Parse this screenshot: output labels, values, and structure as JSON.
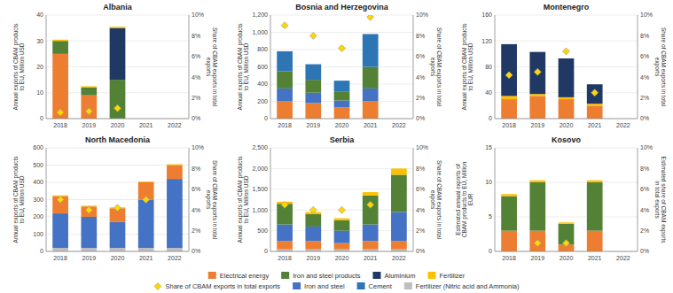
{
  "chart_data": [
    {
      "type": "bar",
      "stacked": true,
      "grid": true,
      "legend": "bottom",
      "title": "Albania",
      "categories": [
        "2018",
        "2019",
        "2020",
        "2021",
        "2022"
      ],
      "ylabel": "Annual exports of CBAM products\nto EU, Million USD",
      "y2label": "Share of CBAM exports in total\nexports",
      "ylim": [
        0,
        40
      ],
      "yticks": [
        0,
        10,
        20,
        30,
        40
      ],
      "y2lim": [
        0,
        10
      ],
      "y2ticks": [
        {
          "value": 0,
          "label": "0%"
        },
        {
          "value": 2,
          "label": "2%"
        },
        {
          "value": 4,
          "label": "4%"
        },
        {
          "value": 6,
          "label": "6%"
        },
        {
          "value": 8,
          "label": "8%"
        },
        {
          "value": 10,
          "label": "10%"
        }
      ],
      "series": [
        {
          "name": "Electrical energy",
          "color": "#ed7d31",
          "values": [
            25,
            9,
            0,
            0,
            0
          ]
        },
        {
          "name": "Iron and steel products",
          "color": "#538135",
          "values": [
            5,
            3,
            15,
            0,
            0
          ]
        },
        {
          "name": "Aluminium",
          "color": "#1f3864",
          "values": [
            0,
            0,
            20,
            0,
            0
          ]
        },
        {
          "name": "Fertilizer",
          "color": "#ffc000",
          "values": [
            0.5,
            0.5,
            0.5,
            0,
            0
          ]
        },
        {
          "name": "Share of CBAM exports in total exports",
          "type": "scatter",
          "axis": "y2",
          "marker": "diamond",
          "color": "#ffd700",
          "values": [
            0.6,
            0.7,
            1.0,
            null,
            null
          ]
        }
      ]
    },
    {
      "type": "bar",
      "stacked": true,
      "grid": true,
      "legend": "bottom",
      "title": "Bosnia and Herzegovina",
      "categories": [
        "2018",
        "2019",
        "2020",
        "2021",
        "2022"
      ],
      "ylabel": "Annual exports of CBAM products\nto EU, Million USD",
      "y2label": "Share of CBAM exports in total\nexports",
      "ylim": [
        0,
        1200
      ],
      "yticks": [
        0,
        200,
        400,
        600,
        800,
        {
          "value": 1000,
          "label": "1,000"
        },
        {
          "value": 1200,
          "label": "1,200"
        }
      ],
      "y2lim": [
        0,
        10
      ],
      "y2ticks": [
        {
          "value": 0,
          "label": "0%"
        },
        {
          "value": 2,
          "label": "2%"
        },
        {
          "value": 4,
          "label": "4%"
        },
        {
          "value": 6,
          "label": "6%"
        },
        {
          "value": 8,
          "label": "8%"
        },
        {
          "value": 10,
          "label": "10%"
        }
      ],
      "series": [
        {
          "name": "Electrical energy",
          "color": "#ed7d31",
          "values": [
            200,
            180,
            130,
            200,
            0
          ]
        },
        {
          "name": "Iron and steel",
          "color": "#4472c4",
          "values": [
            150,
            120,
            80,
            150,
            0
          ]
        },
        {
          "name": "Iron and steel products",
          "color": "#538135",
          "values": [
            200,
            150,
            100,
            250,
            0
          ]
        },
        {
          "name": "Cement",
          "color": "#2e75b6",
          "values": [
            230,
            180,
            130,
            380,
            0
          ]
        },
        {
          "name": "Share of CBAM exports in total exports",
          "type": "scatter",
          "axis": "y2",
          "marker": "diamond",
          "color": "#ffd700",
          "values": [
            9.0,
            8.0,
            6.8,
            9.8,
            null
          ]
        }
      ]
    },
    {
      "type": "bar",
      "stacked": true,
      "grid": true,
      "legend": "bottom",
      "title": "Montenegro",
      "categories": [
        "2018",
        "2019",
        "2020",
        "2021",
        "2022"
      ],
      "ylabel": "Annual exports of CBAM products\nto EU, Million USD",
      "y2label": "Share of CBAM exports in total\nexports",
      "ylim": [
        0,
        160
      ],
      "yticks": [
        0,
        40,
        80,
        120,
        160
      ],
      "y2lim": [
        0,
        10
      ],
      "y2ticks": [
        {
          "value": 0,
          "label": "0%"
        },
        {
          "value": 2,
          "label": "2%"
        },
        {
          "value": 4,
          "label": "4%"
        },
        {
          "value": 6,
          "label": "6%"
        },
        {
          "value": 8,
          "label": "8%"
        },
        {
          "value": 10,
          "label": "10%"
        }
      ],
      "series": [
        {
          "name": "Electrical energy",
          "color": "#ed7d31",
          "values": [
            30,
            35,
            30,
            20,
            0
          ]
        },
        {
          "name": "Fertilizer",
          "color": "#ffc000",
          "values": [
            5,
            3,
            3,
            3,
            0
          ]
        },
        {
          "name": "Aluminium",
          "color": "#1f3864",
          "values": [
            80,
            65,
            60,
            30,
            0
          ]
        },
        {
          "name": "Share of CBAM exports in total exports",
          "type": "scatter",
          "axis": "y2",
          "marker": "diamond",
          "color": "#ffd700",
          "values": [
            4.2,
            4.5,
            6.5,
            2.5,
            null
          ]
        }
      ]
    },
    {
      "type": "bar",
      "stacked": true,
      "grid": true,
      "legend": "bottom",
      "title": "North Macedonia",
      "categories": [
        "2018",
        "2019",
        "2020",
        "2021",
        "2022"
      ],
      "ylabel": "Annual exports of CBAM products\nto EU, Million USD",
      "y2label": "Share of CBAM exports in total\nexports",
      "ylim": [
        0,
        600
      ],
      "yticks": [
        0,
        100,
        200,
        300,
        400,
        500,
        600
      ],
      "y2lim": [
        0,
        10
      ],
      "y2ticks": [
        {
          "value": 0,
          "label": "0%"
        },
        {
          "value": 2,
          "label": "2%"
        },
        {
          "value": 4,
          "label": "4%"
        },
        {
          "value": 6,
          "label": "6%"
        },
        {
          "value": 8,
          "label": "8%"
        },
        {
          "value": 10,
          "label": "10%"
        }
      ],
      "series": [
        {
          "name": "Fertilizer (Nitric acid and Ammonia)",
          "color": "#bfbfbf",
          "values": [
            20,
            20,
            20,
            20,
            20
          ]
        },
        {
          "name": "Iron and steel",
          "color": "#4472c4",
          "values": [
            200,
            180,
            150,
            280,
            400
          ]
        },
        {
          "name": "Electrical energy",
          "color": "#ed7d31",
          "values": [
            100,
            60,
            80,
            100,
            80
          ]
        },
        {
          "name": "Fertilizer",
          "color": "#ffc000",
          "values": [
            5,
            5,
            5,
            5,
            5
          ]
        },
        {
          "name": "Share of CBAM exports in total exports",
          "type": "scatter",
          "axis": "y2",
          "marker": "diamond",
          "color": "#ffd700",
          "values": [
            5.0,
            4.0,
            4.2,
            5.0,
            null
          ]
        }
      ]
    },
    {
      "type": "bar",
      "stacked": true,
      "grid": true,
      "legend": "bottom",
      "title": "Serbia",
      "categories": [
        "2018",
        "2019",
        "2020",
        "2021",
        "2022"
      ],
      "ylabel": "Annual exports of CBAM products\nto EU, Million USD",
      "y2label": "Share of CBAM exports in total\nexports",
      "ylim": [
        0,
        2500
      ],
      "yticks": [
        0,
        500,
        {
          "value": 1000,
          "label": "1,000"
        },
        {
          "value": 1500,
          "label": "1,500"
        },
        {
          "value": 2000,
          "label": "2,000"
        },
        {
          "value": 2500,
          "label": "2,500"
        }
      ],
      "y2lim": [
        0,
        10
      ],
      "y2ticks": [
        {
          "value": 0,
          "label": "0%"
        },
        {
          "value": 2,
          "label": "2%"
        },
        {
          "value": 4,
          "label": "4%"
        },
        {
          "value": 6,
          "label": "6%"
        },
        {
          "value": 8,
          "label": "8%"
        },
        {
          "value": 10,
          "label": "10%"
        }
      ],
      "series": [
        {
          "name": "Fertilizer (Nitric acid and Ammonia)",
          "color": "#bfbfbf",
          "values": [
            50,
            50,
            50,
            50,
            50
          ]
        },
        {
          "name": "Electrical energy",
          "color": "#ed7d31",
          "values": [
            200,
            200,
            150,
            200,
            200
          ]
        },
        {
          "name": "Iron and steel",
          "color": "#4472c4",
          "values": [
            400,
            350,
            300,
            400,
            700
          ]
        },
        {
          "name": "Iron and steel products",
          "color": "#538135",
          "values": [
            500,
            300,
            250,
            700,
            900
          ]
        },
        {
          "name": "Fertilizer",
          "color": "#ffc000",
          "values": [
            50,
            50,
            50,
            80,
            150
          ]
        },
        {
          "name": "Share of CBAM exports in total exports",
          "type": "scatter",
          "axis": "y2",
          "marker": "diamond",
          "color": "#ffd700",
          "values": [
            4.5,
            4.0,
            4.0,
            4.5,
            null
          ]
        }
      ]
    },
    {
      "type": "bar",
      "stacked": true,
      "grid": true,
      "legend": "bottom",
      "title": "Kosovo",
      "categories": [
        "2018",
        "2019",
        "2020",
        "2021",
        "2022"
      ],
      "ylabel": "Estimated annual exports of\nCBAM products to EU, Million\nEUR",
      "y2label": "Estimated share of CBAM exports\nin total exports",
      "ylim": [
        0,
        15
      ],
      "yticks": [
        0,
        5,
        10,
        15
      ],
      "y2lim": [
        0,
        10
      ],
      "y2ticks": [
        {
          "value": 0,
          "label": "0%"
        },
        {
          "value": 2,
          "label": "2%"
        },
        {
          "value": 4,
          "label": "4%"
        },
        {
          "value": 6,
          "label": "6%"
        },
        {
          "value": 8,
          "label": "8%"
        },
        {
          "value": 10,
          "label": "10%"
        }
      ],
      "series": [
        {
          "name": "Electrical energy",
          "color": "#ed7d31",
          "values": [
            3,
            3,
            1,
            3,
            0
          ]
        },
        {
          "name": "Iron and steel products",
          "color": "#538135",
          "values": [
            5,
            7,
            3,
            7,
            0
          ]
        },
        {
          "name": "Fertilizer",
          "color": "#ffc000",
          "values": [
            0.3,
            0.3,
            0.2,
            0.3,
            0
          ]
        },
        {
          "name": "Share of CBAM exports in total exports",
          "type": "scatter",
          "axis": "y2",
          "marker": "diamond",
          "color": "#ffd700",
          "values": [
            null,
            0.8,
            0.8,
            null,
            null
          ]
        }
      ]
    }
  ]
}
